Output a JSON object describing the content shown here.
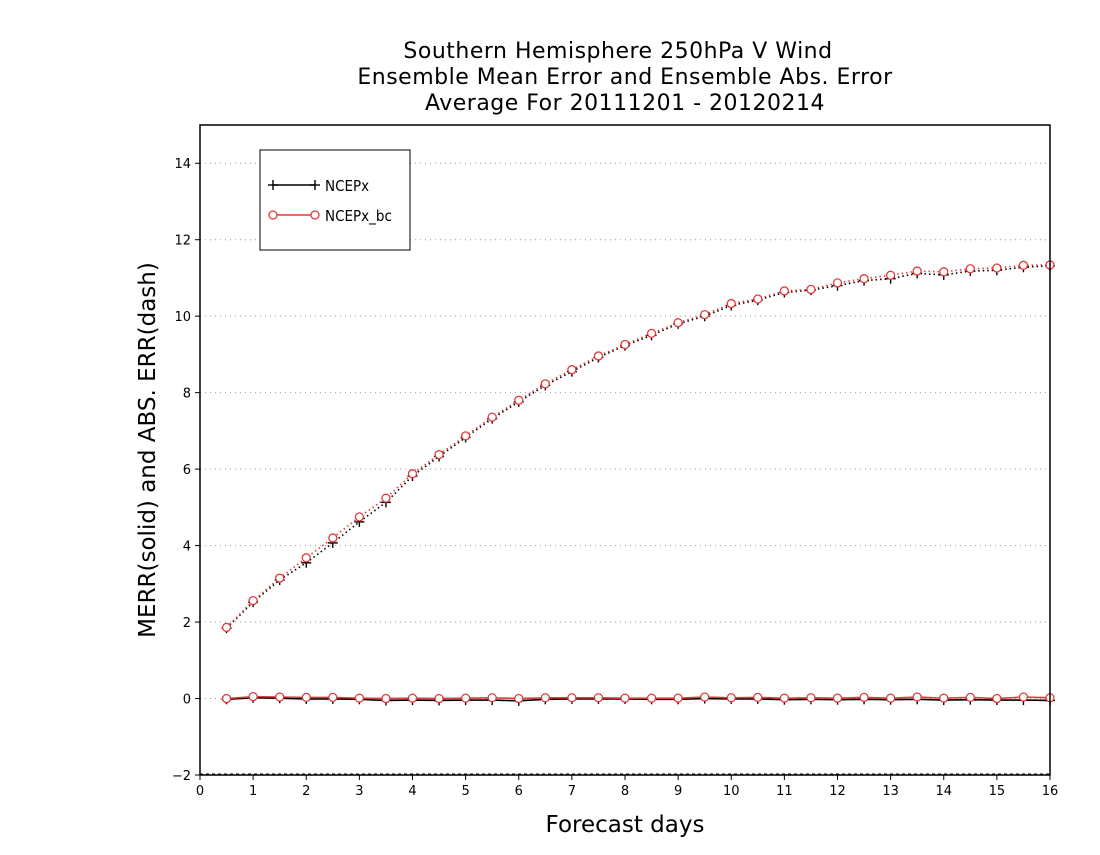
{
  "chart_data": {
    "type": "line",
    "title_lines": [
      "Southern Hemisphere 250hPa V Wind",
      "Ensemble Mean Error and Ensemble Abs. Error",
      "Average For 20111201 - 20120214"
    ],
    "xlabel": "Forecast days",
    "ylabel": "MERR(solid) and ABS. ERR(dash)",
    "xlim": [
      0,
      16
    ],
    "ylim": [
      -2,
      15
    ],
    "xticks": [
      0,
      1,
      2,
      3,
      4,
      5,
      6,
      7,
      8,
      9,
      10,
      11,
      12,
      13,
      14,
      15,
      16
    ],
    "yticks": [
      -2,
      0,
      2,
      4,
      6,
      8,
      10,
      12,
      14
    ],
    "grid": "horizontal dotted",
    "legend_position": "top-left",
    "x": [
      0.5,
      1,
      1.5,
      2,
      2.5,
      3,
      3.5,
      4,
      4.5,
      5,
      5.5,
      6,
      6.5,
      7,
      7.5,
      8,
      8.5,
      9,
      9.5,
      10,
      10.5,
      11,
      11.5,
      12,
      12.5,
      13,
      13.5,
      14,
      14.5,
      15,
      15.5,
      16
    ],
    "series": [
      {
        "name": "NCEPx",
        "color": "#000000",
        "marker": "plus",
        "mean_error": [
          -0.02,
          0.02,
          0.01,
          -0.01,
          -0.01,
          -0.02,
          -0.05,
          -0.04,
          -0.05,
          -0.04,
          -0.04,
          -0.06,
          -0.02,
          -0.01,
          -0.01,
          -0.01,
          -0.02,
          -0.02,
          0.0,
          -0.01,
          -0.01,
          -0.03,
          -0.02,
          -0.03,
          -0.02,
          -0.03,
          -0.02,
          -0.04,
          -0.03,
          -0.04,
          -0.04,
          -0.05
        ],
        "abs_error": [
          1.84,
          2.52,
          3.1,
          3.55,
          4.07,
          4.62,
          5.13,
          5.82,
          6.33,
          6.83,
          7.32,
          7.76,
          8.19,
          8.55,
          8.92,
          9.23,
          9.5,
          9.8,
          10.0,
          10.28,
          10.42,
          10.62,
          10.68,
          10.8,
          10.93,
          10.98,
          11.12,
          11.08,
          11.18,
          11.2,
          11.28,
          11.32
        ]
      },
      {
        "name": "NCEPx_bc",
        "color": "#e23a3a",
        "marker": "circle",
        "mean_error": [
          0.0,
          0.05,
          0.04,
          0.03,
          0.03,
          0.01,
          0.0,
          0.01,
          0.0,
          0.01,
          0.02,
          0.0,
          0.02,
          0.02,
          0.02,
          0.01,
          0.01,
          0.01,
          0.04,
          0.02,
          0.03,
          0.01,
          0.02,
          0.01,
          0.03,
          0.01,
          0.04,
          0.01,
          0.03,
          0.0,
          0.04,
          0.02
        ],
        "abs_error": [
          1.86,
          2.56,
          3.15,
          3.68,
          4.2,
          4.75,
          5.24,
          5.88,
          6.38,
          6.87,
          7.36,
          7.8,
          8.23,
          8.6,
          8.96,
          9.26,
          9.55,
          9.83,
          10.04,
          10.33,
          10.45,
          10.66,
          10.7,
          10.87,
          10.98,
          11.07,
          11.18,
          11.16,
          11.24,
          11.26,
          11.33,
          11.34
        ]
      }
    ]
  }
}
